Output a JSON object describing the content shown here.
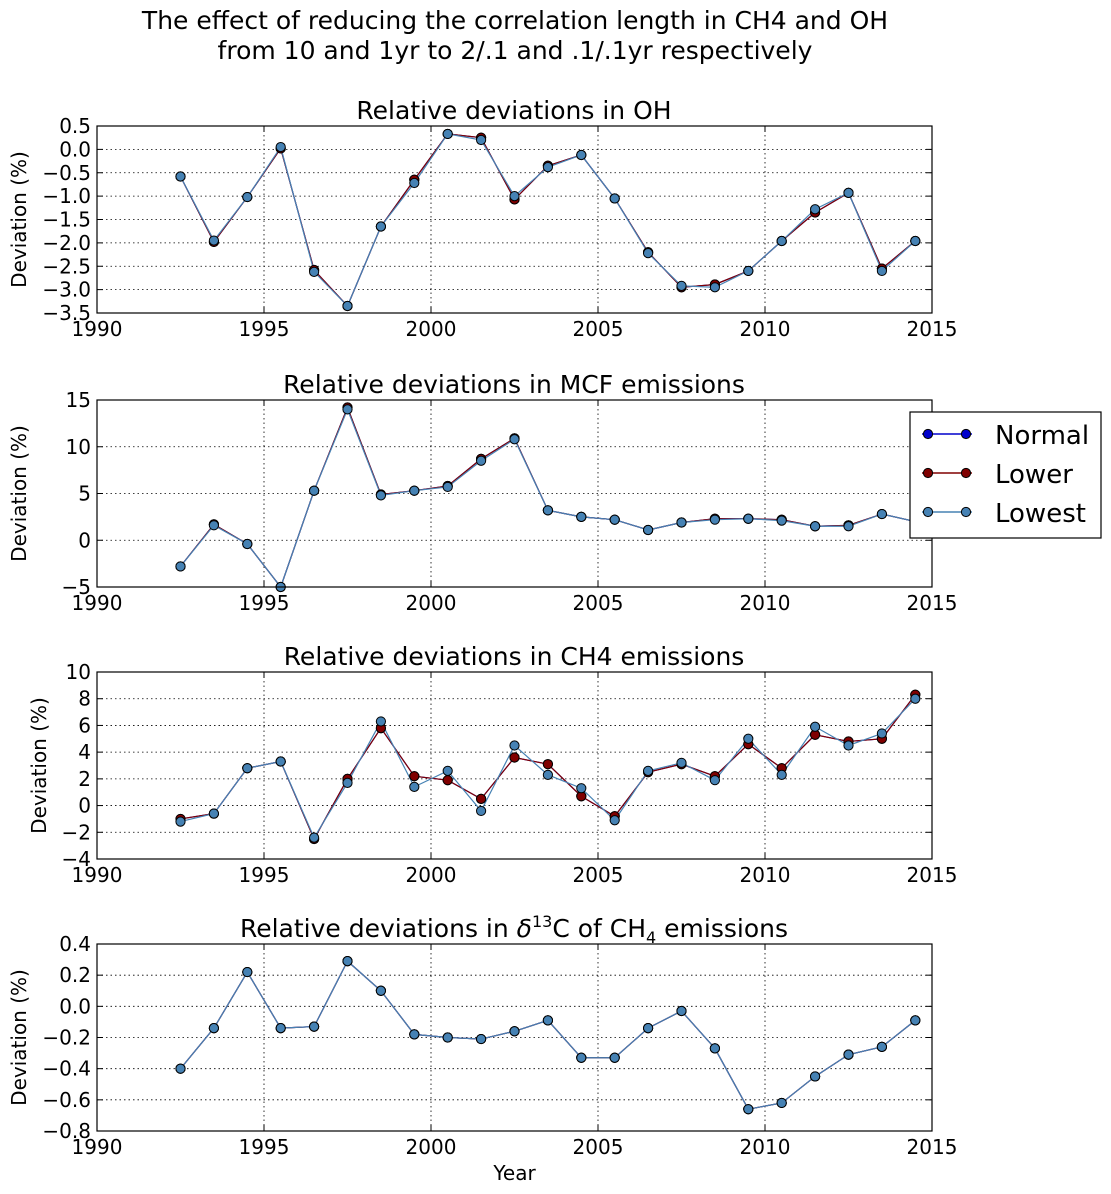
{
  "figure": {
    "suptitle_line1": "The effect of reducing the correlation length in CH4 and OH",
    "suptitle_line2": "from 10 and 1yr to 2/.1 and .1/.1yr respectively",
    "xlabel": "Year"
  },
  "legend": {
    "placement": "right of second panel",
    "entries": [
      {
        "name": "Normal",
        "color": "#0000cc"
      },
      {
        "name": "Lower",
        "color": "#800000"
      },
      {
        "name": "Lowest",
        "color": "#4682b4"
      }
    ]
  },
  "chart_data": [
    {
      "type": "line",
      "title": "Relative deviations in OH",
      "ylabel": "Deviation (%)",
      "xlim": [
        1990,
        2015
      ],
      "ylim": [
        -3.5,
        0.5
      ],
      "yticks": [
        "0.5",
        "0.0",
        "−0.5",
        "−1.0",
        "−1.5",
        "−2.0",
        "−2.5",
        "−3.0",
        "−3.5"
      ],
      "xticks": [
        "1990",
        "1995",
        "2000",
        "2005",
        "2010",
        "2015"
      ],
      "grid": true,
      "x": [
        1992.5,
        1993.5,
        1994.5,
        1995.5,
        1996.5,
        1997.5,
        1998.5,
        1999.5,
        2000.5,
        2001.5,
        2002.5,
        2003.5,
        2004.5,
        2005.5,
        2006.5,
        2007.5,
        2008.5,
        2009.5,
        2010.5,
        2011.5,
        2012.5,
        2013.5,
        2014.5
      ],
      "series": [
        {
          "name": "Normal",
          "color": "#0000cc",
          "values": [
            -0.58,
            -1.98,
            -1.02,
            0.02,
            -2.58,
            -3.35,
            -1.65,
            -0.65,
            0.33,
            0.25,
            -1.07,
            -0.35,
            -0.12,
            -1.05,
            -2.2,
            -2.95,
            -2.89,
            -2.6,
            -1.96,
            -1.35,
            -0.93,
            -2.55,
            -1.96
          ]
        },
        {
          "name": "Lower",
          "color": "#800000",
          "values": [
            -0.58,
            -1.98,
            -1.02,
            0.02,
            -2.58,
            -3.35,
            -1.65,
            -0.65,
            0.33,
            0.25,
            -1.07,
            -0.35,
            -0.12,
            -1.05,
            -2.2,
            -2.95,
            -2.89,
            -2.6,
            -1.96,
            -1.35,
            -0.93,
            -2.55,
            -1.96
          ]
        },
        {
          "name": "Lowest",
          "color": "#4682b4",
          "values": [
            -0.58,
            -1.95,
            -1.02,
            0.05,
            -2.62,
            -3.35,
            -1.65,
            -0.72,
            0.33,
            0.2,
            -1.0,
            -0.38,
            -0.12,
            -1.05,
            -2.22,
            -2.92,
            -2.95,
            -2.6,
            -1.96,
            -1.28,
            -0.93,
            -2.6,
            -1.96
          ]
        }
      ]
    },
    {
      "type": "line",
      "title": "Relative deviations in MCF emissions",
      "ylabel": "Deviation (%)",
      "xlim": [
        1990,
        2015
      ],
      "ylim": [
        -5,
        15
      ],
      "yticks": [
        "15",
        "10",
        "5",
        "0",
        "−5"
      ],
      "xticks": [
        "1990",
        "1995",
        "2000",
        "2005",
        "2010",
        "2015"
      ],
      "grid": true,
      "x": [
        1992.5,
        1993.5,
        1994.5,
        1995.5,
        1996.5,
        1997.5,
        1998.5,
        1999.5,
        2000.5,
        2001.5,
        2002.5,
        2003.5,
        2004.5,
        2005.5,
        2006.5,
        2007.5,
        2008.5,
        2009.5,
        2010.5,
        2011.5,
        2012.5,
        2013.5,
        2014.5
      ],
      "series": [
        {
          "name": "Normal",
          "color": "#0000cc",
          "values": [
            -2.8,
            1.7,
            -0.4,
            -5.0,
            5.3,
            14.2,
            4.9,
            5.3,
            5.8,
            8.7,
            10.9,
            3.2,
            2.5,
            2.2,
            1.1,
            1.9,
            2.3,
            2.3,
            2.2,
            1.5,
            1.6,
            2.8,
            2.0
          ]
        },
        {
          "name": "Lower",
          "color": "#800000",
          "values": [
            -2.8,
            1.7,
            -0.4,
            -5.0,
            5.3,
            14.2,
            4.9,
            5.3,
            5.8,
            8.7,
            10.9,
            3.2,
            2.5,
            2.2,
            1.1,
            1.9,
            2.3,
            2.3,
            2.2,
            1.5,
            1.6,
            2.8,
            2.0
          ]
        },
        {
          "name": "Lowest",
          "color": "#4682b4",
          "values": [
            -2.8,
            1.6,
            -0.4,
            -5.0,
            5.3,
            14.0,
            4.8,
            5.3,
            5.7,
            8.5,
            10.8,
            3.2,
            2.5,
            2.2,
            1.1,
            1.9,
            2.2,
            2.3,
            2.1,
            1.5,
            1.5,
            2.8,
            2.0
          ]
        }
      ]
    },
    {
      "type": "line",
      "title": "Relative deviations in CH4 emissions",
      "ylabel": "Deviation (%)",
      "xlim": [
        1990,
        2015
      ],
      "ylim": [
        -4,
        10
      ],
      "yticks": [
        "10",
        "8",
        "6",
        "4",
        "2",
        "0",
        "−2",
        "−4"
      ],
      "xticks": [
        "1990",
        "1995",
        "2000",
        "2005",
        "2010",
        "2015"
      ],
      "grid": true,
      "x": [
        1992.5,
        1993.5,
        1994.5,
        1995.5,
        1996.5,
        1997.5,
        1998.5,
        1999.5,
        2000.5,
        2001.5,
        2002.5,
        2003.5,
        2004.5,
        2005.5,
        2006.5,
        2007.5,
        2008.5,
        2009.5,
        2010.5,
        2011.5,
        2012.5,
        2013.5,
        2014.5
      ],
      "series": [
        {
          "name": "Normal",
          "color": "#0000cc",
          "values": [
            -1.0,
            -0.6,
            2.8,
            3.3,
            -2.5,
            2.0,
            5.8,
            2.2,
            1.9,
            0.5,
            3.6,
            3.1,
            0.7,
            -0.8,
            2.5,
            3.1,
            2.2,
            4.6,
            2.8,
            5.3,
            4.8,
            5.0,
            8.3
          ]
        },
        {
          "name": "Lower",
          "color": "#800000",
          "values": [
            -1.0,
            -0.6,
            2.8,
            3.3,
            -2.5,
            2.0,
            5.8,
            2.2,
            1.9,
            0.5,
            3.6,
            3.1,
            0.7,
            -0.8,
            2.5,
            3.1,
            2.2,
            4.6,
            2.8,
            5.3,
            4.8,
            5.0,
            8.3
          ]
        },
        {
          "name": "Lowest",
          "color": "#4682b4",
          "values": [
            -1.2,
            -0.6,
            2.8,
            3.3,
            -2.4,
            1.7,
            6.3,
            1.4,
            2.6,
            -0.4,
            4.5,
            2.3,
            1.3,
            -1.1,
            2.6,
            3.2,
            1.9,
            5.0,
            2.3,
            5.9,
            4.5,
            5.4,
            8.0
          ]
        }
      ]
    },
    {
      "type": "line",
      "title": "Relative deviations in",
      "title_symbol": "δ",
      "title_sup": "13",
      "title_mid": "C of CH",
      "title_sub": "4",
      "title_end": " emissions",
      "ylabel": "Deviation (%)",
      "xlabel": "Year",
      "xlim": [
        1990,
        2015
      ],
      "ylim": [
        -0.8,
        0.4
      ],
      "yticks": [
        "0.4",
        "0.2",
        "0.0",
        "−0.2",
        "−0.4",
        "−0.6",
        "−0.8"
      ],
      "xticks": [
        "1990",
        "1995",
        "2000",
        "2005",
        "2010",
        "2015"
      ],
      "grid": true,
      "x": [
        1992.5,
        1993.5,
        1994.5,
        1995.5,
        1996.5,
        1997.5,
        1998.5,
        1999.5,
        2000.5,
        2001.5,
        2002.5,
        2003.5,
        2004.5,
        2005.5,
        2006.5,
        2007.5,
        2008.5,
        2009.5,
        2010.5,
        2011.5,
        2012.5,
        2013.5,
        2014.5
      ],
      "series": [
        {
          "name": "Normal",
          "color": "#0000cc",
          "values": [
            -0.4,
            -0.14,
            0.22,
            -0.14,
            -0.13,
            0.29,
            0.1,
            -0.18,
            -0.2,
            -0.21,
            -0.16,
            -0.09,
            -0.33,
            -0.33,
            -0.14,
            -0.03,
            -0.27,
            -0.66,
            -0.62,
            -0.45,
            -0.31,
            -0.26,
            -0.09
          ]
        },
        {
          "name": "Lower",
          "color": "#800000",
          "values": [
            -0.4,
            -0.14,
            0.22,
            -0.14,
            -0.13,
            0.29,
            0.1,
            -0.18,
            -0.2,
            -0.21,
            -0.16,
            -0.09,
            -0.33,
            -0.33,
            -0.14,
            -0.03,
            -0.27,
            -0.66,
            -0.62,
            -0.45,
            -0.31,
            -0.26,
            -0.09
          ]
        },
        {
          "name": "Lowest",
          "color": "#4682b4",
          "values": [
            -0.4,
            -0.14,
            0.22,
            -0.14,
            -0.13,
            0.29,
            0.1,
            -0.18,
            -0.2,
            -0.21,
            -0.16,
            -0.09,
            -0.33,
            -0.33,
            -0.14,
            -0.03,
            -0.27,
            -0.66,
            -0.62,
            -0.45,
            -0.31,
            -0.26,
            -0.09
          ]
        }
      ]
    }
  ]
}
